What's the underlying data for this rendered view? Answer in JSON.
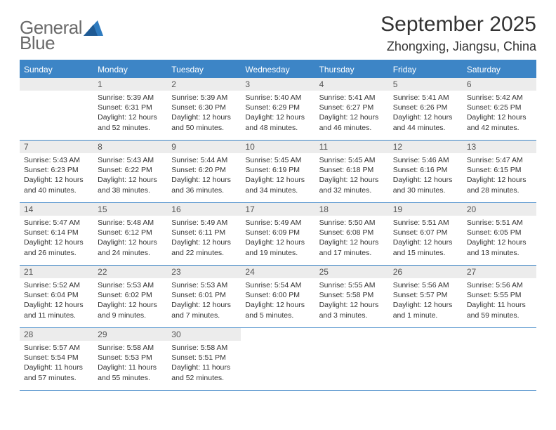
{
  "brand": {
    "name_part1": "General",
    "name_part2": "Blue"
  },
  "title": "September 2025",
  "location": "Zhongxing, Jiangsu, China",
  "colors": {
    "header_blue": "#3d85c6",
    "row_grey": "#ececec",
    "text": "#333333",
    "logo_grey": "#6a6a6a",
    "logo_blue": "#2f7bbf"
  },
  "day_headers": [
    "Sunday",
    "Monday",
    "Tuesday",
    "Wednesday",
    "Thursday",
    "Friday",
    "Saturday"
  ],
  "weeks": [
    [
      {
        "n": "",
        "sunrise": "",
        "sunset": "",
        "daylight": ""
      },
      {
        "n": "1",
        "sunrise": "Sunrise: 5:39 AM",
        "sunset": "Sunset: 6:31 PM",
        "daylight": "Daylight: 12 hours and 52 minutes."
      },
      {
        "n": "2",
        "sunrise": "Sunrise: 5:39 AM",
        "sunset": "Sunset: 6:30 PM",
        "daylight": "Daylight: 12 hours and 50 minutes."
      },
      {
        "n": "3",
        "sunrise": "Sunrise: 5:40 AM",
        "sunset": "Sunset: 6:29 PM",
        "daylight": "Daylight: 12 hours and 48 minutes."
      },
      {
        "n": "4",
        "sunrise": "Sunrise: 5:41 AM",
        "sunset": "Sunset: 6:27 PM",
        "daylight": "Daylight: 12 hours and 46 minutes."
      },
      {
        "n": "5",
        "sunrise": "Sunrise: 5:41 AM",
        "sunset": "Sunset: 6:26 PM",
        "daylight": "Daylight: 12 hours and 44 minutes."
      },
      {
        "n": "6",
        "sunrise": "Sunrise: 5:42 AM",
        "sunset": "Sunset: 6:25 PM",
        "daylight": "Daylight: 12 hours and 42 minutes."
      }
    ],
    [
      {
        "n": "7",
        "sunrise": "Sunrise: 5:43 AM",
        "sunset": "Sunset: 6:23 PM",
        "daylight": "Daylight: 12 hours and 40 minutes."
      },
      {
        "n": "8",
        "sunrise": "Sunrise: 5:43 AM",
        "sunset": "Sunset: 6:22 PM",
        "daylight": "Daylight: 12 hours and 38 minutes."
      },
      {
        "n": "9",
        "sunrise": "Sunrise: 5:44 AM",
        "sunset": "Sunset: 6:20 PM",
        "daylight": "Daylight: 12 hours and 36 minutes."
      },
      {
        "n": "10",
        "sunrise": "Sunrise: 5:45 AM",
        "sunset": "Sunset: 6:19 PM",
        "daylight": "Daylight: 12 hours and 34 minutes."
      },
      {
        "n": "11",
        "sunrise": "Sunrise: 5:45 AM",
        "sunset": "Sunset: 6:18 PM",
        "daylight": "Daylight: 12 hours and 32 minutes."
      },
      {
        "n": "12",
        "sunrise": "Sunrise: 5:46 AM",
        "sunset": "Sunset: 6:16 PM",
        "daylight": "Daylight: 12 hours and 30 minutes."
      },
      {
        "n": "13",
        "sunrise": "Sunrise: 5:47 AM",
        "sunset": "Sunset: 6:15 PM",
        "daylight": "Daylight: 12 hours and 28 minutes."
      }
    ],
    [
      {
        "n": "14",
        "sunrise": "Sunrise: 5:47 AM",
        "sunset": "Sunset: 6:14 PM",
        "daylight": "Daylight: 12 hours and 26 minutes."
      },
      {
        "n": "15",
        "sunrise": "Sunrise: 5:48 AM",
        "sunset": "Sunset: 6:12 PM",
        "daylight": "Daylight: 12 hours and 24 minutes."
      },
      {
        "n": "16",
        "sunrise": "Sunrise: 5:49 AM",
        "sunset": "Sunset: 6:11 PM",
        "daylight": "Daylight: 12 hours and 22 minutes."
      },
      {
        "n": "17",
        "sunrise": "Sunrise: 5:49 AM",
        "sunset": "Sunset: 6:09 PM",
        "daylight": "Daylight: 12 hours and 19 minutes."
      },
      {
        "n": "18",
        "sunrise": "Sunrise: 5:50 AM",
        "sunset": "Sunset: 6:08 PM",
        "daylight": "Daylight: 12 hours and 17 minutes."
      },
      {
        "n": "19",
        "sunrise": "Sunrise: 5:51 AM",
        "sunset": "Sunset: 6:07 PM",
        "daylight": "Daylight: 12 hours and 15 minutes."
      },
      {
        "n": "20",
        "sunrise": "Sunrise: 5:51 AM",
        "sunset": "Sunset: 6:05 PM",
        "daylight": "Daylight: 12 hours and 13 minutes."
      }
    ],
    [
      {
        "n": "21",
        "sunrise": "Sunrise: 5:52 AM",
        "sunset": "Sunset: 6:04 PM",
        "daylight": "Daylight: 12 hours and 11 minutes."
      },
      {
        "n": "22",
        "sunrise": "Sunrise: 5:53 AM",
        "sunset": "Sunset: 6:02 PM",
        "daylight": "Daylight: 12 hours and 9 minutes."
      },
      {
        "n": "23",
        "sunrise": "Sunrise: 5:53 AM",
        "sunset": "Sunset: 6:01 PM",
        "daylight": "Daylight: 12 hours and 7 minutes."
      },
      {
        "n": "24",
        "sunrise": "Sunrise: 5:54 AM",
        "sunset": "Sunset: 6:00 PM",
        "daylight": "Daylight: 12 hours and 5 minutes."
      },
      {
        "n": "25",
        "sunrise": "Sunrise: 5:55 AM",
        "sunset": "Sunset: 5:58 PM",
        "daylight": "Daylight: 12 hours and 3 minutes."
      },
      {
        "n": "26",
        "sunrise": "Sunrise: 5:56 AM",
        "sunset": "Sunset: 5:57 PM",
        "daylight": "Daylight: 12 hours and 1 minute."
      },
      {
        "n": "27",
        "sunrise": "Sunrise: 5:56 AM",
        "sunset": "Sunset: 5:55 PM",
        "daylight": "Daylight: 11 hours and 59 minutes."
      }
    ],
    [
      {
        "n": "28",
        "sunrise": "Sunrise: 5:57 AM",
        "sunset": "Sunset: 5:54 PM",
        "daylight": "Daylight: 11 hours and 57 minutes."
      },
      {
        "n": "29",
        "sunrise": "Sunrise: 5:58 AM",
        "sunset": "Sunset: 5:53 PM",
        "daylight": "Daylight: 11 hours and 55 minutes."
      },
      {
        "n": "30",
        "sunrise": "Sunrise: 5:58 AM",
        "sunset": "Sunset: 5:51 PM",
        "daylight": "Daylight: 11 hours and 52 minutes."
      },
      {
        "n": "",
        "sunrise": "",
        "sunset": "",
        "daylight": "",
        "empty": true
      },
      {
        "n": "",
        "sunrise": "",
        "sunset": "",
        "daylight": "",
        "empty": true
      },
      {
        "n": "",
        "sunrise": "",
        "sunset": "",
        "daylight": "",
        "empty": true
      },
      {
        "n": "",
        "sunrise": "",
        "sunset": "",
        "daylight": "",
        "empty": true
      }
    ]
  ]
}
